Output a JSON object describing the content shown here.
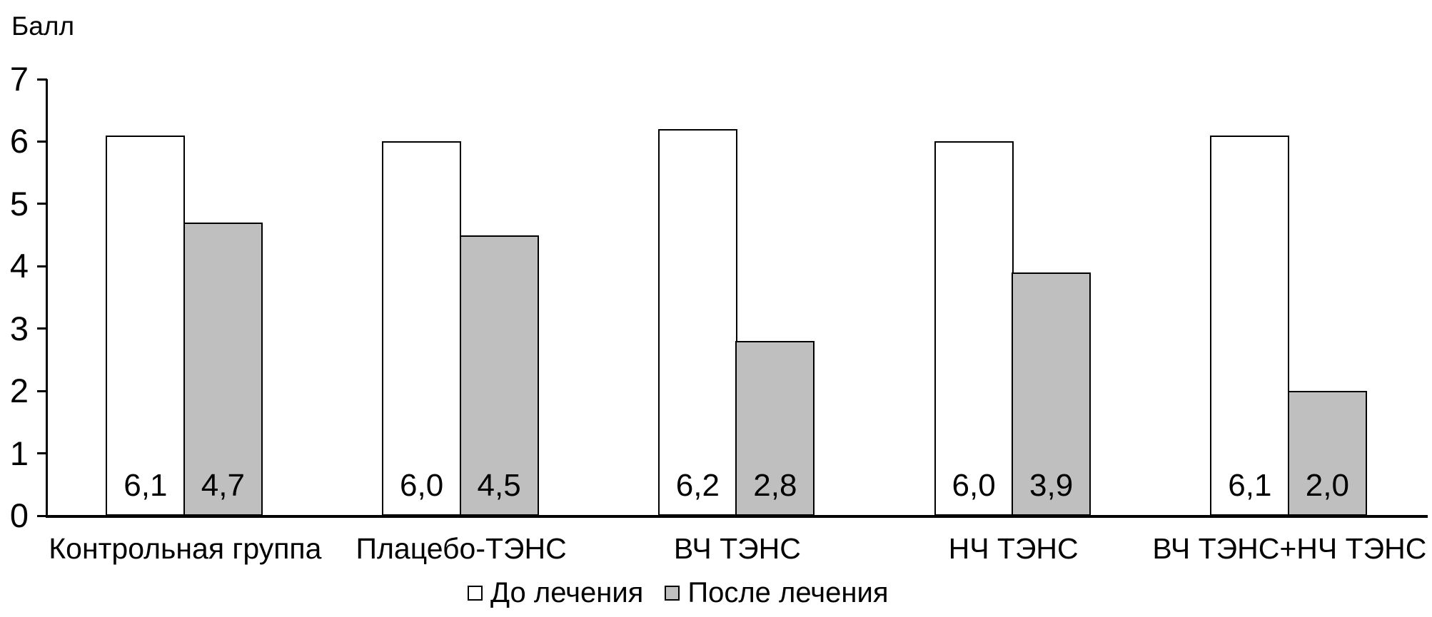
{
  "chart_data": {
    "type": "bar",
    "title": "",
    "ylabel": "Балл",
    "xlabel": "",
    "categories": [
      "Контрольная группа",
      "Плацебо-ТЭНС",
      "ВЧ ТЭНС",
      "НЧ ТЭНС",
      "ВЧ ТЭНС+НЧ ТЭНС"
    ],
    "series": [
      {
        "name": "До лечения",
        "values": [
          6.1,
          6.0,
          6.2,
          6.0,
          6.1
        ],
        "value_labels": [
          "6,1",
          "6,0",
          "6,2",
          "6,0",
          "6,1"
        ],
        "fill": "#FFFFFF"
      },
      {
        "name": "После лечения",
        "values": [
          4.7,
          4.5,
          2.8,
          3.9,
          2.0
        ],
        "value_labels": [
          "4,7",
          "4,5",
          "2,8",
          "3,9",
          "2,0"
        ],
        "fill": "#BFBFBF"
      }
    ],
    "ylim": [
      0,
      7
    ],
    "yticks": [
      "0",
      "1",
      "2",
      "3",
      "4",
      "5",
      "6",
      "7"
    ],
    "grid": false,
    "legend_position": "bottom",
    "colors": {
      "bar_border": "#000000",
      "axis": "#000000",
      "text": "#000000",
      "series_fills": [
        "#FFFFFF",
        "#BFBFBF"
      ]
    }
  }
}
